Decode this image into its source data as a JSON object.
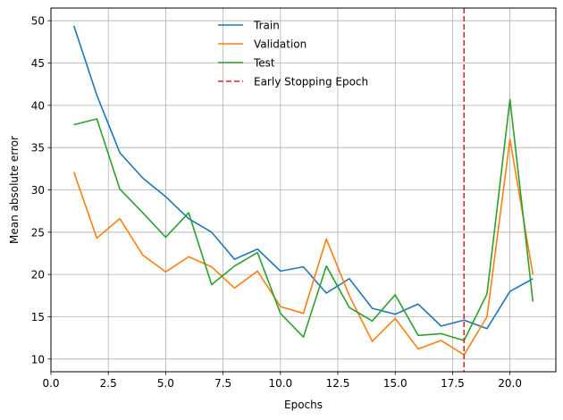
{
  "chart_data": {
    "type": "line",
    "title": "",
    "xlabel": "Epochs",
    "ylabel": "Mean absolute error",
    "xlim": [
      0.0,
      22.0
    ],
    "ylim": [
      8.5,
      51.5
    ],
    "xticks": [
      0.0,
      2.5,
      5.0,
      7.5,
      10.0,
      12.5,
      15.0,
      17.5,
      20.0
    ],
    "xtick_labels": [
      "0.0",
      "2.5",
      "5.0",
      "7.5",
      "10.0",
      "12.5",
      "15.0",
      "17.5",
      "20.0"
    ],
    "yticks": [
      10,
      15,
      20,
      25,
      30,
      35,
      40,
      45,
      50
    ],
    "ytick_labels": [
      "10",
      "15",
      "20",
      "25",
      "30",
      "35",
      "40",
      "45",
      "50"
    ],
    "grid": true,
    "legend_position": "top-center",
    "x": [
      1,
      2,
      3,
      4,
      5,
      6,
      7,
      8,
      9,
      10,
      11,
      12,
      13,
      14,
      15,
      16,
      17,
      18,
      19,
      20,
      21
    ],
    "series": [
      {
        "name": "Train",
        "color": "#1f77b4",
        "values": [
          49.4,
          41.2,
          34.4,
          31.4,
          29.2,
          26.6,
          25.0,
          21.8,
          23.0,
          20.4,
          20.9,
          17.8,
          19.5,
          16.0,
          15.3,
          16.5,
          13.9,
          14.6,
          13.6,
          18.0,
          19.5
        ]
      },
      {
        "name": "Validation",
        "color": "#ff7f0e",
        "values": [
          32.1,
          24.3,
          26.6,
          22.3,
          20.3,
          22.1,
          20.9,
          18.4,
          20.4,
          16.2,
          15.4,
          24.2,
          17.5,
          12.1,
          14.8,
          11.2,
          12.2,
          10.5,
          15.0,
          36.0,
          20.0
        ]
      },
      {
        "name": "Test",
        "color": "#2ca02c",
        "values": [
          37.7,
          38.4,
          30.1,
          27.3,
          24.4,
          27.3,
          18.8,
          21.0,
          22.6,
          15.4,
          12.6,
          21.0,
          16.1,
          14.5,
          17.6,
          12.8,
          13.0,
          12.2,
          17.7,
          40.7,
          16.8
        ]
      }
    ],
    "vline": {
      "name": "Early Stopping Epoch",
      "x": 18,
      "color": "#d62728",
      "style": "dashed"
    }
  }
}
